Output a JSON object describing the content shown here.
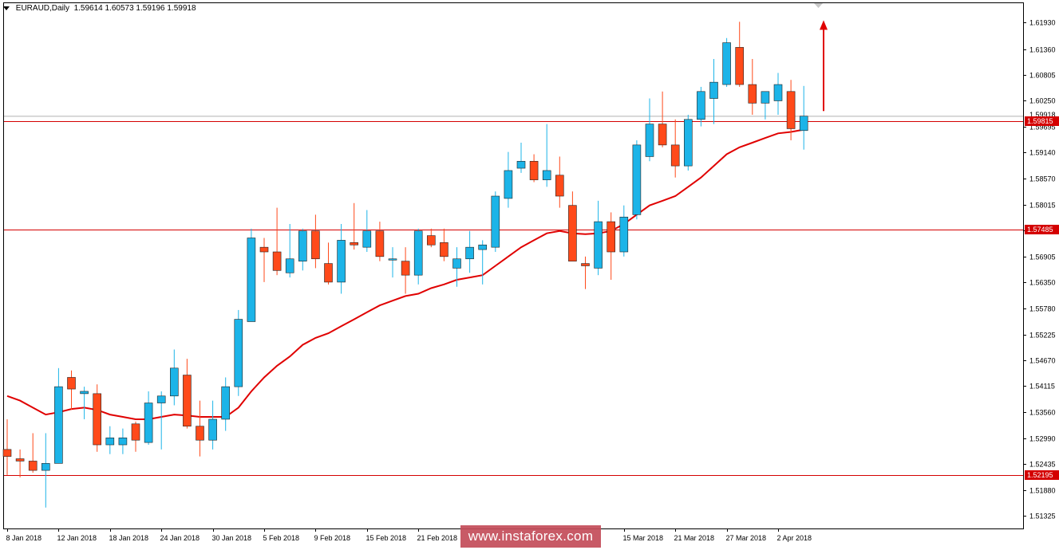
{
  "header": {
    "symbol": "EURAUD,Daily",
    "ohlc": "1.59614 1.60573 1.59196 1.59918"
  },
  "watermark": "www.instaforex.com",
  "colors": {
    "bull": "#1cb4e8",
    "bear": "#ff4a1a",
    "ma": "#e00000",
    "level": "#d40000",
    "grid": "#000000",
    "arrow": "#e00000"
  },
  "chart_data": {
    "type": "candlestick",
    "title": "",
    "symbol": "EURAUD",
    "timeframe": "Daily",
    "ylim": [
      1.5105,
      1.6235
    ],
    "y_ticks": [
      "1.61930",
      "1.61360",
      "1.60805",
      "1.60250",
      "1.59695",
      "1.59140",
      "1.58570",
      "1.58015",
      "1.57460",
      "1.56905",
      "1.56350",
      "1.55780",
      "1.55225",
      "1.54670",
      "1.54115",
      "1.53560",
      "1.52990",
      "1.52435",
      "1.51880",
      "1.51325"
    ],
    "x_tick_labels": [
      "8 Jan 2018",
      "12 Jan 2018",
      "18 Jan 2018",
      "24 Jan 2018",
      "30 Jan 2018",
      "5 Feb 2018",
      "9 Feb 2018",
      "15 Feb 2018",
      "21 Feb 2018",
      "15 Mar 2018",
      "21 Mar 2018",
      "27 Mar 2018",
      "2 Apr 2018"
    ],
    "x_tick_index": [
      0,
      4,
      8,
      12,
      16,
      20,
      24,
      28,
      32,
      48,
      52,
      56,
      60
    ],
    "candles": [
      {
        "o": 1.5275,
        "h": 1.534,
        "l": 1.522,
        "c": 1.526
      },
      {
        "o": 1.5255,
        "h": 1.5275,
        "l": 1.5215,
        "c": 1.525
      },
      {
        "o": 1.525,
        "h": 1.531,
        "l": 1.5225,
        "c": 1.523
      },
      {
        "o": 1.523,
        "h": 1.531,
        "l": 1.515,
        "c": 1.5245
      },
      {
        "o": 1.5245,
        "h": 1.545,
        "l": 1.5245,
        "c": 1.541
      },
      {
        "o": 1.543,
        "h": 1.5445,
        "l": 1.536,
        "c": 1.5405
      },
      {
        "o": 1.5395,
        "h": 1.541,
        "l": 1.534,
        "c": 1.54
      },
      {
        "o": 1.5395,
        "h": 1.5415,
        "l": 1.527,
        "c": 1.5285
      },
      {
        "o": 1.5285,
        "h": 1.5325,
        "l": 1.5265,
        "c": 1.53
      },
      {
        "o": 1.5285,
        "h": 1.532,
        "l": 1.5265,
        "c": 1.53
      },
      {
        "o": 1.533,
        "h": 1.5335,
        "l": 1.527,
        "c": 1.5295
      },
      {
        "o": 1.529,
        "h": 1.54,
        "l": 1.5285,
        "c": 1.5375
      },
      {
        "o": 1.5375,
        "h": 1.54,
        "l": 1.5275,
        "c": 1.539
      },
      {
        "o": 1.539,
        "h": 1.549,
        "l": 1.537,
        "c": 1.545
      },
      {
        "o": 1.5435,
        "h": 1.547,
        "l": 1.532,
        "c": 1.5325
      },
      {
        "o": 1.5325,
        "h": 1.538,
        "l": 1.526,
        "c": 1.5295
      },
      {
        "o": 1.5295,
        "h": 1.538,
        "l": 1.5275,
        "c": 1.534
      },
      {
        "o": 1.534,
        "h": 1.543,
        "l": 1.5315,
        "c": 1.541
      },
      {
        "o": 1.541,
        "h": 1.5575,
        "l": 1.539,
        "c": 1.5555
      },
      {
        "o": 1.555,
        "h": 1.575,
        "l": 1.555,
        "c": 1.573
      },
      {
        "o": 1.571,
        "h": 1.573,
        "l": 1.5635,
        "c": 1.57
      },
      {
        "o": 1.57,
        "h": 1.5795,
        "l": 1.565,
        "c": 1.566
      },
      {
        "o": 1.5655,
        "h": 1.576,
        "l": 1.5645,
        "c": 1.5685
      },
      {
        "o": 1.568,
        "h": 1.575,
        "l": 1.566,
        "c": 1.5745
      },
      {
        "o": 1.5745,
        "h": 1.578,
        "l": 1.5665,
        "c": 1.5685
      },
      {
        "o": 1.5675,
        "h": 1.572,
        "l": 1.563,
        "c": 1.5635
      },
      {
        "o": 1.5635,
        "h": 1.576,
        "l": 1.561,
        "c": 1.5725
      },
      {
        "o": 1.572,
        "h": 1.5805,
        "l": 1.5705,
        "c": 1.5715
      },
      {
        "o": 1.571,
        "h": 1.579,
        "l": 1.57,
        "c": 1.5745
      },
      {
        "o": 1.5745,
        "h": 1.5765,
        "l": 1.568,
        "c": 1.569
      },
      {
        "o": 1.5685,
        "h": 1.571,
        "l": 1.5645,
        "c": 1.5685
      },
      {
        "o": 1.568,
        "h": 1.571,
        "l": 1.561,
        "c": 1.565
      },
      {
        "o": 1.565,
        "h": 1.575,
        "l": 1.563,
        "c": 1.5745
      },
      {
        "o": 1.5735,
        "h": 1.575,
        "l": 1.571,
        "c": 1.5715
      },
      {
        "o": 1.572,
        "h": 1.575,
        "l": 1.568,
        "c": 1.569
      },
      {
        "o": 1.5665,
        "h": 1.571,
        "l": 1.5625,
        "c": 1.5685
      },
      {
        "o": 1.5685,
        "h": 1.5745,
        "l": 1.5655,
        "c": 1.571
      },
      {
        "o": 1.5705,
        "h": 1.5725,
        "l": 1.563,
        "c": 1.5715
      },
      {
        "o": 1.571,
        "h": 1.583,
        "l": 1.57,
        "c": 1.582
      },
      {
        "o": 1.5815,
        "h": 1.5915,
        "l": 1.5795,
        "c": 1.5875
      },
      {
        "o": 1.588,
        "h": 1.5935,
        "l": 1.587,
        "c": 1.5895
      },
      {
        "o": 1.5895,
        "h": 1.591,
        "l": 1.585,
        "c": 1.5855
      },
      {
        "o": 1.5855,
        "h": 1.5975,
        "l": 1.584,
        "c": 1.5875
      },
      {
        "o": 1.5865,
        "h": 1.5905,
        "l": 1.5795,
        "c": 1.582
      },
      {
        "o": 1.58,
        "h": 1.583,
        "l": 1.5685,
        "c": 1.568
      },
      {
        "o": 1.5675,
        "h": 1.569,
        "l": 1.562,
        "c": 1.567
      },
      {
        "o": 1.5665,
        "h": 1.581,
        "l": 1.565,
        "c": 1.5765
      },
      {
        "o": 1.5765,
        "h": 1.5785,
        "l": 1.564,
        "c": 1.57
      },
      {
        "o": 1.57,
        "h": 1.58,
        "l": 1.569,
        "c": 1.5775
      },
      {
        "o": 1.578,
        "h": 1.594,
        "l": 1.577,
        "c": 1.593
      },
      {
        "o": 1.5905,
        "h": 1.603,
        "l": 1.5895,
        "c": 1.5975
      },
      {
        "o": 1.5975,
        "h": 1.6045,
        "l": 1.5925,
        "c": 1.593
      },
      {
        "o": 1.593,
        "h": 1.5985,
        "l": 1.586,
        "c": 1.5885
      },
      {
        "o": 1.5885,
        "h": 1.5995,
        "l": 1.5875,
        "c": 1.5985
      },
      {
        "o": 1.5985,
        "h": 1.6055,
        "l": 1.597,
        "c": 1.6045
      },
      {
        "o": 1.603,
        "h": 1.6115,
        "l": 1.5975,
        "c": 1.6065
      },
      {
        "o": 1.606,
        "h": 1.616,
        "l": 1.6055,
        "c": 1.615
      },
      {
        "o": 1.614,
        "h": 1.6195,
        "l": 1.6055,
        "c": 1.606
      },
      {
        "o": 1.606,
        "h": 1.6115,
        "l": 1.5995,
        "c": 1.602
      },
      {
        "o": 1.602,
        "h": 1.6045,
        "l": 1.5985,
        "c": 1.6045
      },
      {
        "o": 1.6025,
        "h": 1.6085,
        "l": 1.5995,
        "c": 1.606
      },
      {
        "o": 1.6045,
        "h": 1.607,
        "l": 1.594,
        "c": 1.5965
      },
      {
        "o": 1.5961,
        "h": 1.6057,
        "l": 1.592,
        "c": 1.5992
      }
    ],
    "moving_average": [
      1.539,
      1.538,
      1.5365,
      1.535,
      1.5355,
      1.5362,
      1.5365,
      1.536,
      1.535,
      1.5345,
      1.534,
      1.534,
      1.5345,
      1.535,
      1.5348,
      1.5345,
      1.5345,
      1.5345,
      1.5365,
      1.54,
      1.543,
      1.5455,
      1.5475,
      1.55,
      1.5515,
      1.5525,
      1.554,
      1.5555,
      1.557,
      1.5585,
      1.5595,
      1.5605,
      1.561,
      1.5622,
      1.563,
      1.564,
      1.5645,
      1.565,
      1.567,
      1.569,
      1.571,
      1.5725,
      1.574,
      1.5745,
      1.574,
      1.5738,
      1.574,
      1.5745,
      1.576,
      1.578,
      1.58,
      1.581,
      1.582,
      1.584,
      1.586,
      1.5885,
      1.591,
      1.5925,
      1.5935,
      1.5945,
      1.5955,
      1.5958,
      1.5963
    ],
    "levels": [
      {
        "value": 1.59815,
        "label": "1.59815"
      },
      {
        "value": 1.57485,
        "label": "1.57485"
      },
      {
        "value": 1.52195,
        "label": "1.52195"
      }
    ],
    "current_price": {
      "value": 1.59918,
      "label": "1.59918"
    },
    "arrow": {
      "direction": "up",
      "from": 1.6003,
      "to": 1.6195
    },
    "grid": false,
    "legend": "none"
  }
}
